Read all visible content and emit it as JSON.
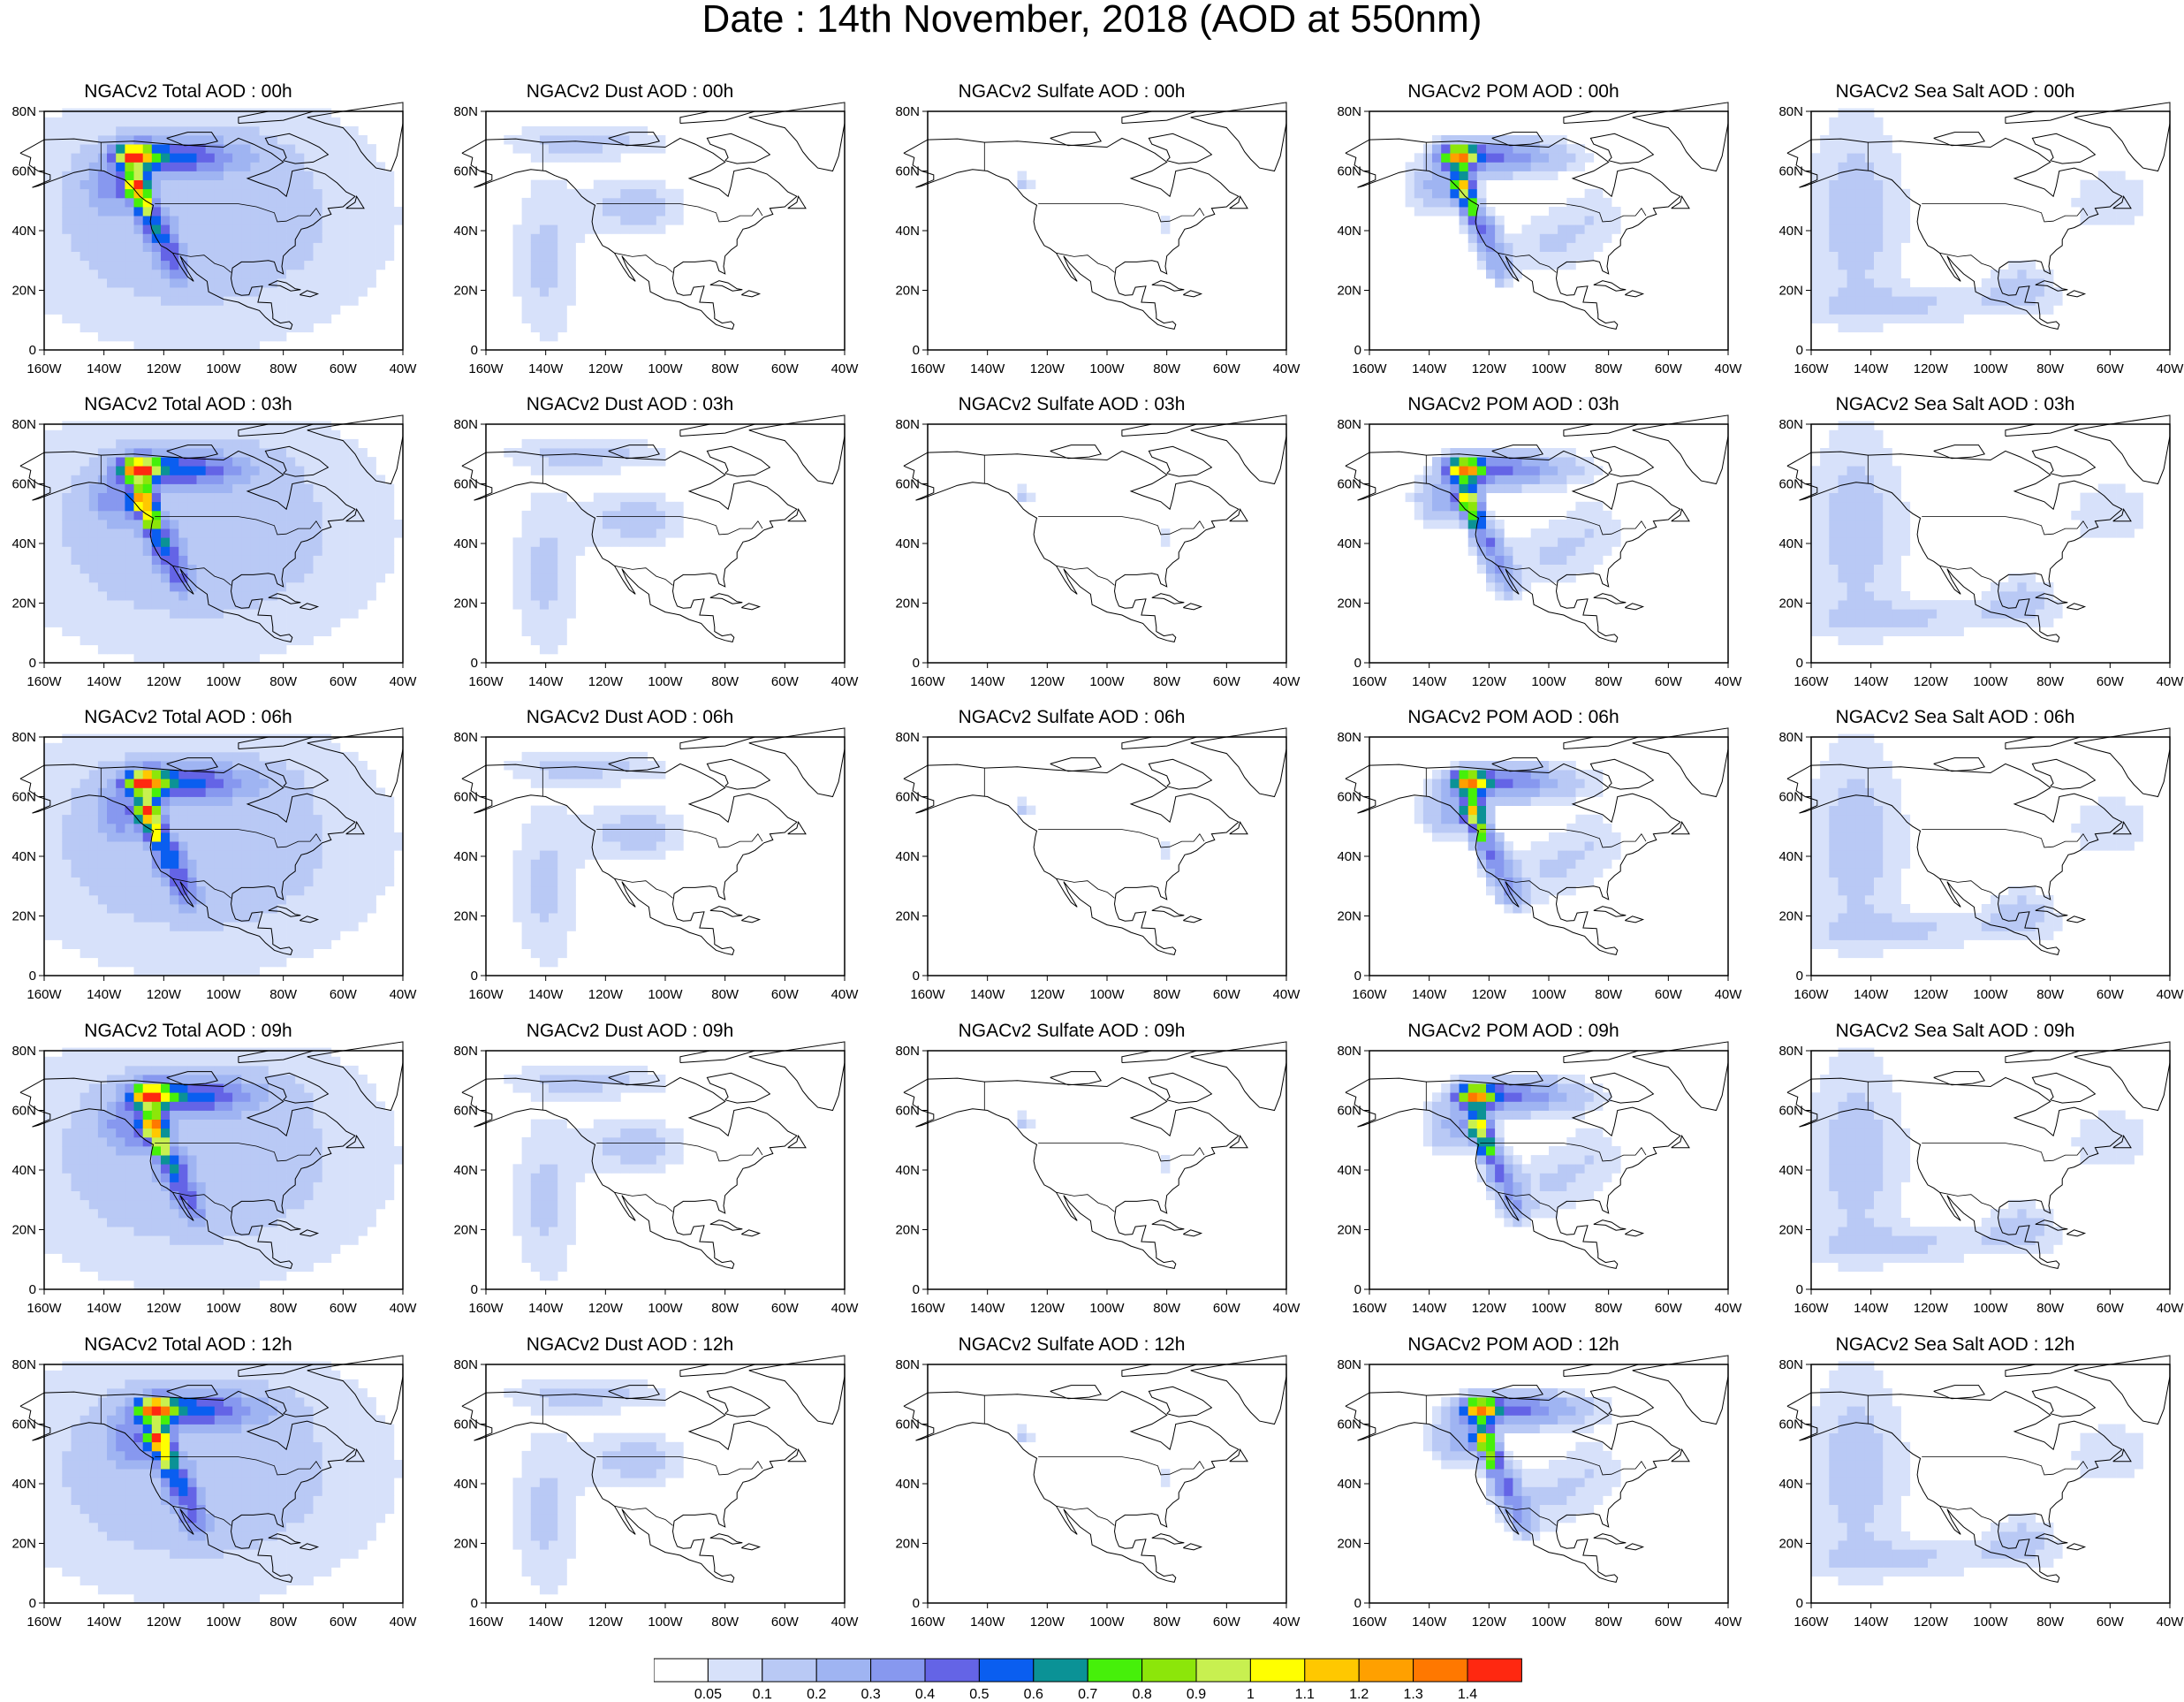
{
  "figure": {
    "title": "Date : 14th November, 2018 (AOD at 550nm)"
  },
  "axes": {
    "lat_labels": [
      "80N",
      "60N",
      "40N",
      "20N",
      "0"
    ],
    "lon_labels": [
      "160W",
      "140W",
      "120W",
      "100W",
      "80W",
      "60W",
      "40W"
    ],
    "lat_range": [
      0,
      80
    ],
    "lon_range": [
      -160,
      -40
    ]
  },
  "panels": [
    {
      "title": "NGACv2 Total AOD : 00h",
      "species": "total",
      "hour": 0
    },
    {
      "title": "NGACv2 Dust AOD : 00h",
      "species": "dust",
      "hour": 0
    },
    {
      "title": "NGACv2 Sulfate AOD : 00h",
      "species": "sulfate",
      "hour": 0
    },
    {
      "title": "NGACv2 POM AOD : 00h",
      "species": "pom",
      "hour": 0
    },
    {
      "title": "NGACv2 Sea Salt AOD : 00h",
      "species": "seasalt",
      "hour": 0
    },
    {
      "title": "NGACv2 Total AOD : 03h",
      "species": "total",
      "hour": 3
    },
    {
      "title": "NGACv2 Dust AOD : 03h",
      "species": "dust",
      "hour": 3
    },
    {
      "title": "NGACv2 Sulfate AOD : 03h",
      "species": "sulfate",
      "hour": 3
    },
    {
      "title": "NGACv2 POM AOD : 03h",
      "species": "pom",
      "hour": 3
    },
    {
      "title": "NGACv2 Sea Salt AOD : 03h",
      "species": "seasalt",
      "hour": 3
    },
    {
      "title": "NGACv2 Total AOD : 06h",
      "species": "total",
      "hour": 6
    },
    {
      "title": "NGACv2 Dust AOD : 06h",
      "species": "dust",
      "hour": 6
    },
    {
      "title": "NGACv2 Sulfate AOD : 06h",
      "species": "sulfate",
      "hour": 6
    },
    {
      "title": "NGACv2 POM AOD : 06h",
      "species": "pom",
      "hour": 6
    },
    {
      "title": "NGACv2 Sea Salt AOD : 06h",
      "species": "seasalt",
      "hour": 6
    },
    {
      "title": "NGACv2 Total AOD : 09h",
      "species": "total",
      "hour": 9
    },
    {
      "title": "NGACv2 Dust AOD : 09h",
      "species": "dust",
      "hour": 9
    },
    {
      "title": "NGACv2 Sulfate AOD : 09h",
      "species": "sulfate",
      "hour": 9
    },
    {
      "title": "NGACv2 POM AOD : 09h",
      "species": "pom",
      "hour": 9
    },
    {
      "title": "NGACv2 Sea Salt  AOD : 09h",
      "species": "seasalt",
      "hour": 9
    },
    {
      "title": "NGACv2 Total AOD  : 12h",
      "species": "total",
      "hour": 12
    },
    {
      "title": "NGACv2 Dust AOD : 12h",
      "species": "dust",
      "hour": 12
    },
    {
      "title": "NGACv2 Sulfate AOD : 12h",
      "species": "sulfate",
      "hour": 12
    },
    {
      "title": "NGACv2 POM  AOD : 12h",
      "species": "pom",
      "hour": 12
    },
    {
      "title": "NGACv2 Sea Salt  AOD : 12h",
      "species": "seasalt",
      "hour": 12
    }
  ],
  "colorbar": {
    "levels": [
      "0.05",
      "0.1",
      "0.2",
      "0.3",
      "0.4",
      "0.5",
      "0.6",
      "0.7",
      "0.8",
      "0.9",
      "1",
      "1.1",
      "1.2",
      "1.3",
      "1.4"
    ],
    "colors": [
      "#ffffff",
      "#d7e1fa",
      "#b9c9f5",
      "#9fb4f2",
      "#8798ef",
      "#6464e6",
      "#0a5ef0",
      "#0b9296",
      "#46f00a",
      "#8ce60a",
      "#c8f050",
      "#ffff00",
      "#ffc800",
      "#ffa000",
      "#ff7800",
      "#ff2810"
    ]
  }
}
